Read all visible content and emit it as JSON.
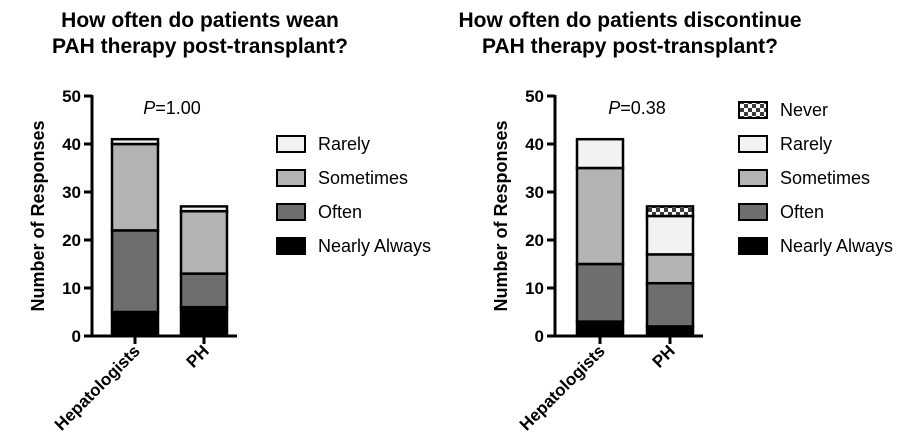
{
  "chart_data": [
    {
      "type": "bar",
      "stacked": true,
      "title_lines": [
        "How often do patients wean",
        "PAH therapy post-transplant?"
      ],
      "ylabel": "Number of Responses",
      "ylim": [
        0,
        50
      ],
      "yticks": [
        0,
        10,
        20,
        30,
        40,
        50
      ],
      "annotation_prefix": "P",
      "annotation_rest": "=1.00",
      "categories": [
        "Hepatologists",
        "PH"
      ],
      "series": [
        {
          "name": "Nearly Always",
          "color": "#000000",
          "values": [
            5,
            6
          ]
        },
        {
          "name": "Often",
          "color": "#6e6e6e",
          "values": [
            17,
            7
          ]
        },
        {
          "name": "Sometimes",
          "color": "#b3b3b3",
          "values": [
            18,
            13
          ]
        },
        {
          "name": "Rarely",
          "color": "#f2f2f2",
          "values": [
            1,
            1
          ]
        }
      ],
      "legend_order": [
        "Rarely",
        "Sometimes",
        "Often",
        "Nearly Always"
      ],
      "legend_placement": "right",
      "grid": false
    },
    {
      "type": "bar",
      "stacked": true,
      "title_lines": [
        "How often do patients discontinue",
        "PAH therapy post-transplant?"
      ],
      "ylabel": "Number of Responses",
      "ylim": [
        0,
        50
      ],
      "yticks": [
        0,
        10,
        20,
        30,
        40,
        50
      ],
      "annotation_prefix": "P",
      "annotation_rest": "=0.38",
      "categories": [
        "Hepatologists",
        "PH"
      ],
      "series": [
        {
          "name": "Nearly Always",
          "color": "#000000",
          "values": [
            3,
            2
          ]
        },
        {
          "name": "Often",
          "color": "#6e6e6e",
          "values": [
            12,
            9
          ]
        },
        {
          "name": "Sometimes",
          "color": "#b3b3b3",
          "values": [
            20,
            6
          ]
        },
        {
          "name": "Rarely",
          "color": "#f2f2f2",
          "values": [
            6,
            8
          ]
        },
        {
          "name": "Never",
          "color": "#4a4a4a",
          "pattern": "checker",
          "values": [
            0,
            2
          ]
        }
      ],
      "legend_order": [
        "Never",
        "Rarely",
        "Sometimes",
        "Often",
        "Nearly Always"
      ],
      "legend_placement": "right",
      "grid": false
    }
  ]
}
